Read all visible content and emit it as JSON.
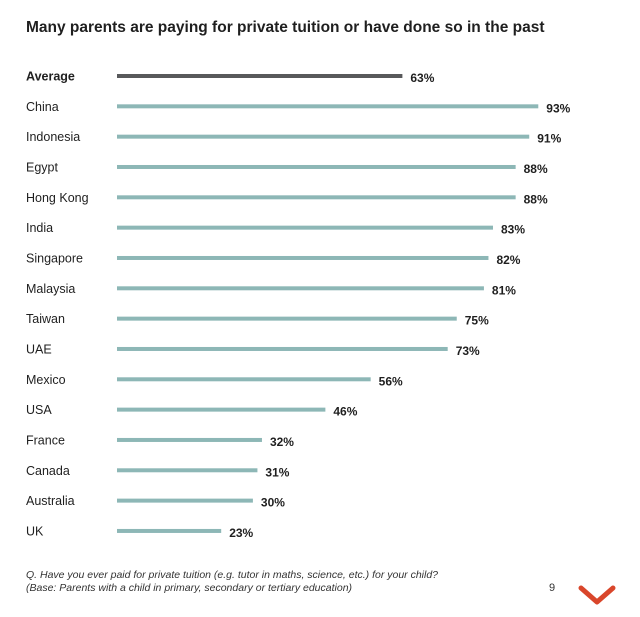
{
  "chart_data": {
    "type": "bar",
    "orientation": "horizontal",
    "title": "Many parents are paying for private tuition or have done so in the past",
    "categories": [
      "Average",
      "China",
      "Indonesia",
      "Egypt",
      "Hong Kong",
      "India",
      "Singapore",
      "Malaysia",
      "Taiwan",
      "UAE",
      "Mexico",
      "USA",
      "France",
      "Canada",
      "Australia",
      "UK"
    ],
    "values": [
      63,
      93,
      91,
      88,
      88,
      83,
      82,
      81,
      75,
      73,
      56,
      46,
      32,
      31,
      30,
      23
    ],
    "value_labels": [
      "63%",
      "93%",
      "91%",
      "88%",
      "88%",
      "83%",
      "82%",
      "81%",
      "75%",
      "73%",
      "56%",
      "46%",
      "32%",
      "31%",
      "30%",
      "23%"
    ],
    "unit": "%",
    "xlim": [
      0,
      100
    ],
    "grid": false,
    "legend": "none",
    "highlight_category": "Average",
    "colors": {
      "bar": "#8db7b6",
      "highlight_bar": "#58595b"
    }
  },
  "footnote": {
    "question": "Q. Have you ever paid for private tuition (e.g. tutor in maths, science, etc.) for your child?",
    "base": "(Base: Parents with a child in primary, secondary or tertiary education)"
  },
  "page_number": "9",
  "brand": {
    "icon": "chevron-down-icon",
    "color": "#d9462b"
  }
}
